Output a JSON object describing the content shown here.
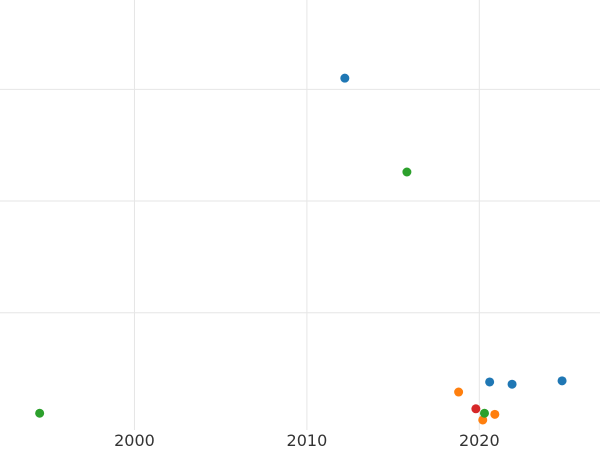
{
  "chart_data": {
    "type": "scatter",
    "title": "",
    "xlabel": "",
    "ylabel": "",
    "xlim": [
      1992.2,
      2027
    ],
    "ylim": [
      -0.05,
      3.8
    ],
    "x_ticks": [
      2000,
      2010,
      2020
    ],
    "x_tick_labels": [
      "2000",
      "2010",
      "2020"
    ],
    "y_ticks": [
      1,
      2,
      3
    ],
    "grid": true,
    "legend": "none",
    "series": [
      {
        "color": "#1f77b4",
        "points": [
          {
            "x": 2012.2,
            "y": 3.1
          },
          {
            "x": 2020.6,
            "y": 0.38
          },
          {
            "x": 2021.9,
            "y": 0.36
          },
          {
            "x": 2024.8,
            "y": 0.39
          }
        ]
      },
      {
        "color": "#ff7f0e",
        "points": [
          {
            "x": 2018.8,
            "y": 0.29
          },
          {
            "x": 2020.9,
            "y": 0.09
          },
          {
            "x": 2020.2,
            "y": 0.04
          }
        ]
      },
      {
        "color": "#2ca02c",
        "points": [
          {
            "x": 2015.8,
            "y": 2.26
          },
          {
            "x": 1994.5,
            "y": 0.1
          },
          {
            "x": 2020.3,
            "y": 0.1
          }
        ]
      },
      {
        "color": "#d62728",
        "points": [
          {
            "x": 2019.8,
            "y": 0.14
          }
        ]
      }
    ]
  }
}
